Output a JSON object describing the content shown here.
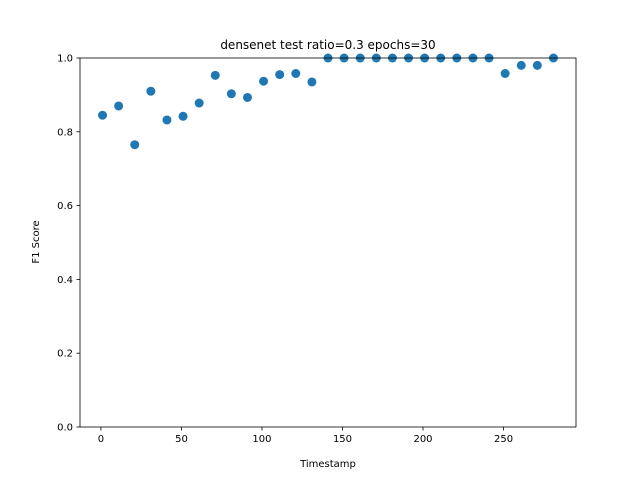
{
  "chart_data": {
    "type": "scatter",
    "title": "densenet test ratio=0.3 epochs=30",
    "xlabel": "Timestamp",
    "ylabel": "F1 Score",
    "xlim": [
      -13,
      295
    ],
    "ylim": [
      0.0,
      1.0
    ],
    "xticks": [
      0,
      50,
      100,
      150,
      200,
      250
    ],
    "yticks": [
      0.0,
      0.2,
      0.4,
      0.6,
      0.8,
      1.0
    ],
    "ytick_labels": [
      "0.0",
      "0.2",
      "0.4",
      "0.6",
      "0.8",
      "1.0"
    ],
    "grid": false,
    "color": "#1f77b4",
    "points": [
      {
        "x": 1,
        "y": 0.845
      },
      {
        "x": 11,
        "y": 0.87
      },
      {
        "x": 21,
        "y": 0.765
      },
      {
        "x": 31,
        "y": 0.91
      },
      {
        "x": 41,
        "y": 0.832
      },
      {
        "x": 51,
        "y": 0.842
      },
      {
        "x": 61,
        "y": 0.878
      },
      {
        "x": 71,
        "y": 0.953
      },
      {
        "x": 81,
        "y": 0.903
      },
      {
        "x": 91,
        "y": 0.893
      },
      {
        "x": 101,
        "y": 0.937
      },
      {
        "x": 111,
        "y": 0.955
      },
      {
        "x": 121,
        "y": 0.958
      },
      {
        "x": 131,
        "y": 0.935
      },
      {
        "x": 141,
        "y": 1.0
      },
      {
        "x": 151,
        "y": 1.0
      },
      {
        "x": 161,
        "y": 1.0
      },
      {
        "x": 171,
        "y": 1.0
      },
      {
        "x": 181,
        "y": 1.0
      },
      {
        "x": 191,
        "y": 1.0
      },
      {
        "x": 201,
        "y": 1.0
      },
      {
        "x": 211,
        "y": 1.0
      },
      {
        "x": 221,
        "y": 1.0
      },
      {
        "x": 231,
        "y": 1.0
      },
      {
        "x": 241,
        "y": 1.0
      },
      {
        "x": 251,
        "y": 0.958
      },
      {
        "x": 261,
        "y": 0.98
      },
      {
        "x": 271,
        "y": 0.98
      },
      {
        "x": 281,
        "y": 1.0
      }
    ]
  }
}
